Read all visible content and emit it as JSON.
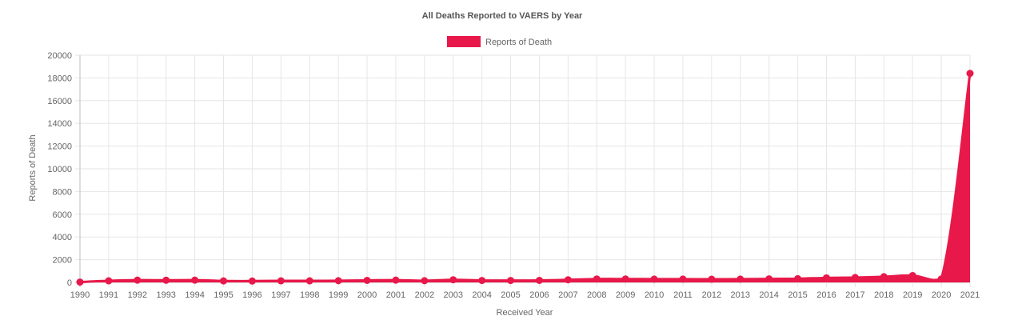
{
  "chart_data": {
    "type": "area",
    "title": "All Deaths Reported to VAERS by Year",
    "xlabel": "Received Year",
    "ylabel": "Reports of Death",
    "legend": {
      "position": "top",
      "entries": [
        "Reports of Death"
      ]
    },
    "grid": true,
    "ylim": [
      0,
      20000
    ],
    "y_ticks": [
      0,
      2000,
      4000,
      6000,
      8000,
      10000,
      12000,
      14000,
      16000,
      18000,
      20000
    ],
    "categories": [
      "1990",
      "1991",
      "1992",
      "1993",
      "1994",
      "1995",
      "1996",
      "1997",
      "1998",
      "1999",
      "2000",
      "2001",
      "2002",
      "2003",
      "2004",
      "2005",
      "2006",
      "2007",
      "2008",
      "2009",
      "2010",
      "2011",
      "2012",
      "2013",
      "2014",
      "2015",
      "2016",
      "2017",
      "2018",
      "2019",
      "2020",
      "2021"
    ],
    "series": [
      {
        "name": "Reports of Death",
        "color": "#e8194a",
        "values": [
          30,
          140,
          200,
          190,
          200,
          130,
          120,
          140,
          140,
          150,
          180,
          200,
          150,
          230,
          170,
          170,
          180,
          230,
          300,
          300,
          290,
          290,
          280,
          290,
          310,
          330,
          400,
          430,
          500,
          600,
          300,
          18400
        ]
      }
    ]
  }
}
